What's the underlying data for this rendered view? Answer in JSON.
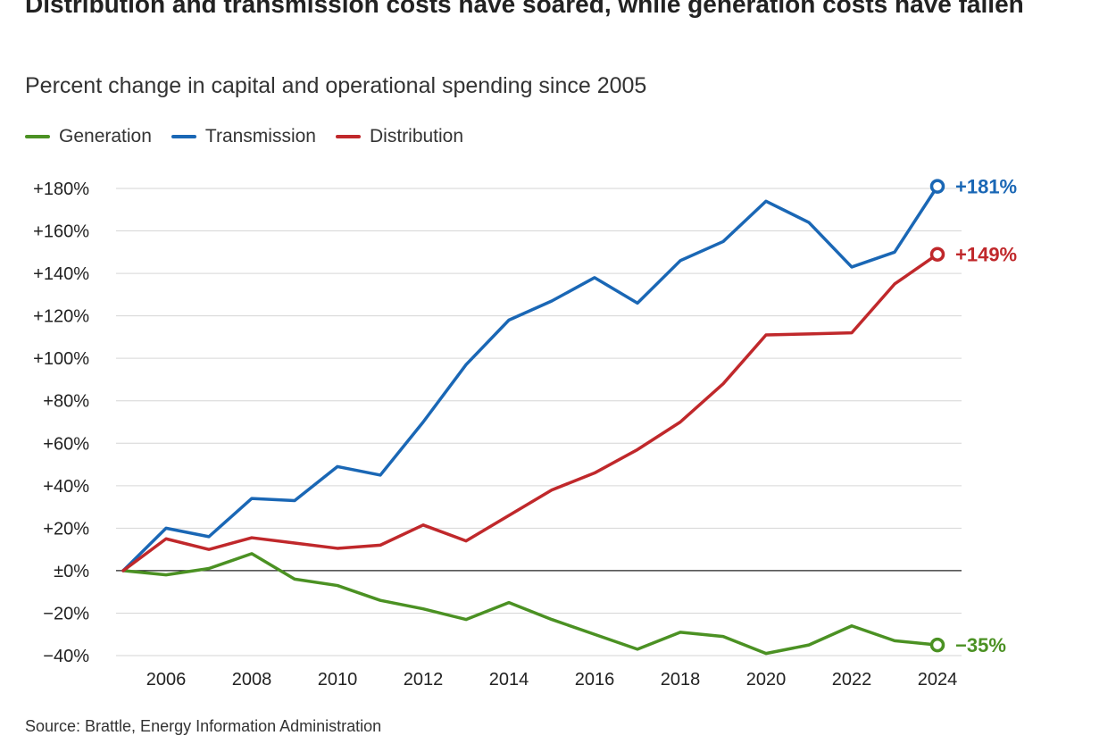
{
  "title": "Distribution and transmission costs have soared, while generation costs have fallen",
  "subtitle": "Percent change in capital and operational spending since 2005",
  "source": "Source: Brattle, Energy Information Administration",
  "chart_data": {
    "type": "line",
    "title": "Distribution and transmission costs have soared, while generation costs have fallen",
    "subtitle": "Percent change in capital and operational spending since 2005",
    "xlabel": "",
    "ylabel": "",
    "x": [
      2005,
      2006,
      2007,
      2008,
      2009,
      2010,
      2011,
      2012,
      2013,
      2014,
      2015,
      2016,
      2017,
      2018,
      2019,
      2020,
      2021,
      2022,
      2023,
      2024
    ],
    "xlim": [
      2005,
      2024
    ],
    "ylim": [
      -40,
      180
    ],
    "x_ticks": [
      "2006",
      "2008",
      "2010",
      "2012",
      "2014",
      "2016",
      "2018",
      "2020",
      "2022",
      "2024"
    ],
    "y_ticks": [
      {
        "value": 180,
        "label": "+180%"
      },
      {
        "value": 160,
        "label": "+160%"
      },
      {
        "value": 140,
        "label": "+140%"
      },
      {
        "value": 120,
        "label": "+120%"
      },
      {
        "value": 100,
        "label": "+100%"
      },
      {
        "value": 80,
        "label": "+80%"
      },
      {
        "value": 60,
        "label": "+60%"
      },
      {
        "value": 40,
        "label": "+40%"
      },
      {
        "value": 20,
        "label": "+20%"
      },
      {
        "value": 0,
        "label": "±0%"
      },
      {
        "value": -20,
        "label": "−20%"
      },
      {
        "value": -40,
        "label": "−40%"
      }
    ],
    "grid": true,
    "legend_position": "top-left",
    "series": [
      {
        "name": "Generation",
        "color": "#4b9123",
        "end_label": "−35%",
        "values": [
          0,
          -2,
          1,
          8,
          -4,
          -7,
          -14,
          -18,
          -23,
          -15,
          -23,
          -30,
          -37,
          -29,
          -31,
          -39,
          -35,
          -26,
          -33,
          -35
        ]
      },
      {
        "name": "Transmission",
        "color": "#1a67b5",
        "end_label": "+181%",
        "values": [
          0,
          20,
          16,
          34,
          33,
          49,
          45,
          70,
          97,
          118,
          127,
          138,
          126,
          146,
          155,
          174,
          164,
          143,
          150,
          181
        ]
      },
      {
        "name": "Distribution",
        "color": "#c0282b",
        "end_label": "+149%",
        "values": [
          0,
          15,
          10,
          15.5,
          13,
          10.5,
          12,
          21.5,
          14,
          26,
          38,
          46,
          57,
          70,
          88,
          111,
          111.5,
          112,
          135,
          149
        ]
      }
    ]
  }
}
